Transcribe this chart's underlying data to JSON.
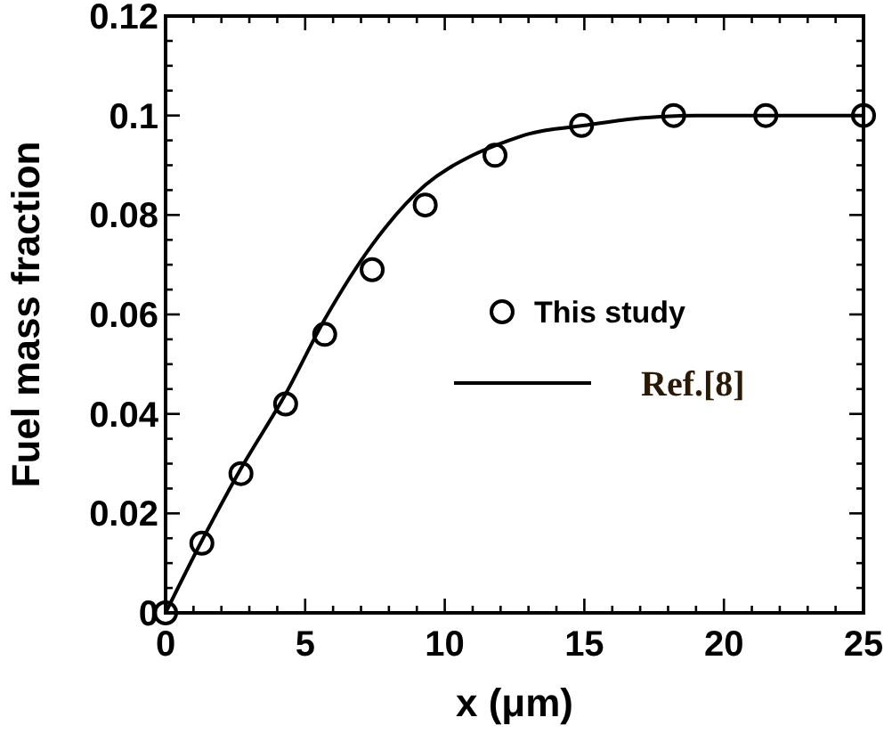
{
  "chart_data": {
    "type": "scatter",
    "xlabel": "x (μm)",
    "ylabel": "Fuel mass fraction",
    "xlim": [
      0,
      25
    ],
    "ylim": [
      0,
      0.12
    ],
    "xticks": [
      0,
      {
        "value": 1,
        "label": null
      },
      {
        "value": 2,
        "label": null
      },
      {
        "value": 3,
        "label": null
      },
      {
        "value": 4,
        "label": null
      },
      5,
      {
        "value": 6,
        "label": null
      },
      {
        "value": 7,
        "label": null
      },
      {
        "value": 8,
        "label": null
      },
      {
        "value": 9,
        "label": null
      },
      10,
      {
        "value": 11,
        "label": null
      },
      {
        "value": 12,
        "label": null
      },
      {
        "value": 13,
        "label": null
      },
      {
        "value": 14,
        "label": null
      },
      15,
      {
        "value": 16,
        "label": null
      },
      {
        "value": 17,
        "label": null
      },
      {
        "value": 18,
        "label": null
      },
      {
        "value": 19,
        "label": null
      },
      20,
      {
        "value": 21,
        "label": null
      },
      {
        "value": 22,
        "label": null
      },
      {
        "value": 23,
        "label": null
      },
      {
        "value": 24,
        "label": null
      },
      25
    ],
    "yticks": [
      0,
      {
        "value": 0.005,
        "label": null
      },
      {
        "value": 0.01,
        "label": null
      },
      {
        "value": 0.015,
        "label": null
      },
      0.02,
      {
        "value": 0.025,
        "label": null
      },
      {
        "value": 0.03,
        "label": null
      },
      {
        "value": 0.035,
        "label": null
      },
      0.04,
      {
        "value": 0.045,
        "label": null
      },
      {
        "value": 0.05,
        "label": null
      },
      {
        "value": 0.055,
        "label": null
      },
      0.06,
      {
        "value": 0.065,
        "label": null
      },
      {
        "value": 0.07,
        "label": null
      },
      {
        "value": 0.075,
        "label": null
      },
      0.08,
      {
        "value": 0.085,
        "label": null
      },
      {
        "value": 0.09,
        "label": null
      },
      {
        "value": 0.095,
        "label": null
      },
      0.1,
      {
        "value": 0.105,
        "label": null
      },
      {
        "value": 0.11,
        "label": null
      },
      {
        "value": 0.115,
        "label": null
      },
      0.12
    ],
    "grid": false,
    "legend": "right",
    "series": [
      {
        "name": "This study",
        "marker": "circle",
        "color": "#000000",
        "x": [
          0,
          1.3,
          2.7,
          4.3,
          5.7,
          7.4,
          9.3,
          11.8,
          14.9,
          18.2,
          21.5,
          25
        ],
        "values": [
          0,
          0.014,
          0.028,
          0.042,
          0.056,
          0.069,
          0.082,
          0.092,
          0.098,
          0.1,
          0.1,
          0.1
        ]
      },
      {
        "name": "Ref.[8]",
        "type": "line",
        "marker": "none",
        "line_style": "solid",
        "color": "#000000",
        "x": [
          0,
          1.3,
          2.7,
          4.3,
          5.7,
          7.4,
          9.3,
          11,
          12.3,
          13,
          15,
          17,
          19,
          25
        ],
        "values": [
          0,
          0.0145,
          0.029,
          0.044,
          0.059,
          0.074,
          0.086,
          0.092,
          0.095,
          0.0963,
          0.098,
          0.0995,
          0.1,
          0.1
        ]
      }
    ]
  }
}
